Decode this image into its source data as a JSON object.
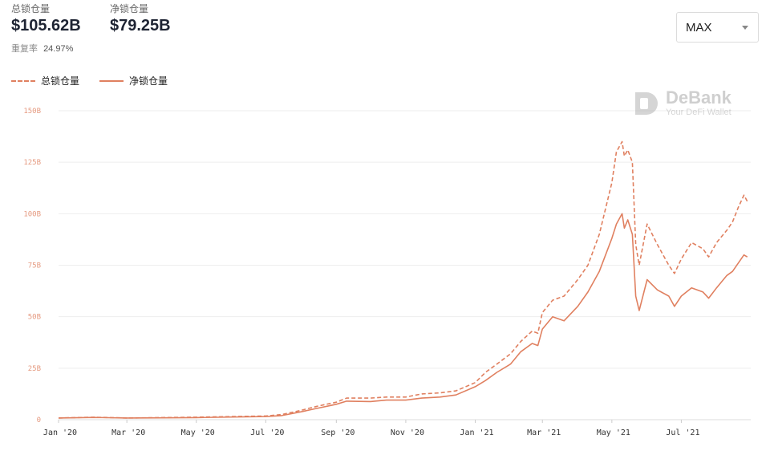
{
  "stats": {
    "total": {
      "label": "总锁仓量",
      "value": "$105.62B"
    },
    "net": {
      "label": "净锁仓量",
      "value": "$79.25B"
    },
    "ratio": {
      "label": "重复率",
      "value": "24.97%"
    }
  },
  "range_select": {
    "value": "MAX"
  },
  "watermark": {
    "brand": "DeBank",
    "tagline": "Your DeFi Wallet",
    "icon": "debank-logo-icon"
  },
  "colors": {
    "line": "#e08060",
    "grid": "#eeeeee",
    "tick_y": "#e59a80"
  },
  "chart_data": {
    "type": "line",
    "title": "",
    "xlabel": "",
    "ylabel": "",
    "ylim": [
      0,
      150
    ],
    "y_unit": "B",
    "yticks": [
      {
        "value": 0,
        "label": "0"
      },
      {
        "value": 25,
        "label": "25B"
      },
      {
        "value": 50,
        "label": "50B"
      },
      {
        "value": 75,
        "label": "75B"
      },
      {
        "value": 100,
        "label": "100B"
      },
      {
        "value": 125,
        "label": "125B"
      },
      {
        "value": 150,
        "label": "150B"
      }
    ],
    "xticks": [
      {
        "x": "2020-01-01",
        "label": "Jan '20"
      },
      {
        "x": "2020-03-01",
        "label": "Mar '20"
      },
      {
        "x": "2020-05-01",
        "label": "May '20"
      },
      {
        "x": "2020-07-01",
        "label": "Jul '20"
      },
      {
        "x": "2020-09-01",
        "label": "Sep '20"
      },
      {
        "x": "2020-11-01",
        "label": "Nov '20"
      },
      {
        "x": "2021-01-01",
        "label": "Jan '21"
      },
      {
        "x": "2021-03-01",
        "label": "Mar '21"
      },
      {
        "x": "2021-05-01",
        "label": "May '21"
      },
      {
        "x": "2021-07-01",
        "label": "Jul '21"
      }
    ],
    "x_range": [
      "2020-01-01",
      "2021-08-31"
    ],
    "grid": true,
    "legend_position": "top-left",
    "series": [
      {
        "name": "总锁仓量",
        "style": "dashed",
        "x": [
          "2020-01-01",
          "2020-02-01",
          "2020-03-01",
          "2020-04-01",
          "2020-05-01",
          "2020-06-01",
          "2020-07-01",
          "2020-07-15",
          "2020-08-01",
          "2020-08-15",
          "2020-09-01",
          "2020-09-10",
          "2020-10-01",
          "2020-10-15",
          "2020-11-01",
          "2020-11-15",
          "2020-12-01",
          "2020-12-15",
          "2021-01-01",
          "2021-01-10",
          "2021-01-20",
          "2021-02-01",
          "2021-02-10",
          "2021-02-20",
          "2021-02-25",
          "2021-03-01",
          "2021-03-10",
          "2021-03-20",
          "2021-04-01",
          "2021-04-10",
          "2021-04-20",
          "2021-05-01",
          "2021-05-05",
          "2021-05-10",
          "2021-05-12",
          "2021-05-15",
          "2021-05-19",
          "2021-05-22",
          "2021-05-25",
          "2021-06-01",
          "2021-06-10",
          "2021-06-20",
          "2021-06-25",
          "2021-07-01",
          "2021-07-10",
          "2021-07-20",
          "2021-07-25",
          "2021-08-01",
          "2021-08-10",
          "2021-08-15",
          "2021-08-20",
          "2021-08-25",
          "2021-08-28"
        ],
        "values": [
          0.8,
          1.2,
          0.8,
          1.0,
          1.2,
          1.5,
          1.8,
          2.5,
          4.5,
          6.5,
          8.5,
          10.5,
          10.5,
          11.0,
          11.0,
          12.5,
          13.0,
          14.0,
          18.0,
          23.0,
          27.0,
          32.0,
          38.0,
          43.0,
          42.0,
          52.0,
          58.0,
          60.0,
          68.0,
          75.0,
          90.0,
          115.0,
          130.0,
          135.0,
          128.0,
          131.0,
          125.0,
          85.0,
          75.0,
          95.0,
          85.0,
          75.0,
          71.0,
          78.0,
          86.0,
          83.0,
          79.0,
          86.0,
          92.0,
          96.0,
          103.0,
          109.0,
          106.0
        ]
      },
      {
        "name": "净锁仓量",
        "style": "solid",
        "x": [
          "2020-01-01",
          "2020-02-01",
          "2020-03-01",
          "2020-04-01",
          "2020-05-01",
          "2020-06-01",
          "2020-07-01",
          "2020-07-15",
          "2020-08-01",
          "2020-08-15",
          "2020-09-01",
          "2020-09-10",
          "2020-10-01",
          "2020-10-15",
          "2020-11-01",
          "2020-11-15",
          "2020-12-01",
          "2020-12-15",
          "2021-01-01",
          "2021-01-10",
          "2021-01-20",
          "2021-02-01",
          "2021-02-10",
          "2021-02-20",
          "2021-02-25",
          "2021-03-01",
          "2021-03-10",
          "2021-03-20",
          "2021-04-01",
          "2021-04-10",
          "2021-04-20",
          "2021-05-01",
          "2021-05-05",
          "2021-05-10",
          "2021-05-12",
          "2021-05-15",
          "2021-05-19",
          "2021-05-22",
          "2021-05-25",
          "2021-06-01",
          "2021-06-10",
          "2021-06-20",
          "2021-06-25",
          "2021-07-01",
          "2021-07-10",
          "2021-07-20",
          "2021-07-25",
          "2021-08-01",
          "2021-08-10",
          "2021-08-15",
          "2021-08-20",
          "2021-08-25",
          "2021-08-28"
        ],
        "values": [
          0.8,
          1.1,
          0.8,
          0.9,
          1.0,
          1.3,
          1.5,
          2.0,
          3.8,
          5.5,
          7.5,
          9.0,
          8.8,
          9.5,
          9.5,
          10.5,
          11.0,
          12.0,
          16.0,
          19.0,
          23.0,
          27.0,
          33.0,
          37.0,
          36.0,
          44.0,
          50.0,
          48.0,
          55.0,
          62.0,
          72.0,
          88.0,
          95.0,
          100.0,
          93.0,
          97.0,
          90.0,
          60.0,
          53.0,
          68.0,
          63.0,
          60.0,
          55.0,
          60.0,
          64.0,
          62.0,
          59.0,
          64.0,
          70.0,
          72.0,
          76.0,
          80.0,
          79.0
        ]
      }
    ]
  }
}
